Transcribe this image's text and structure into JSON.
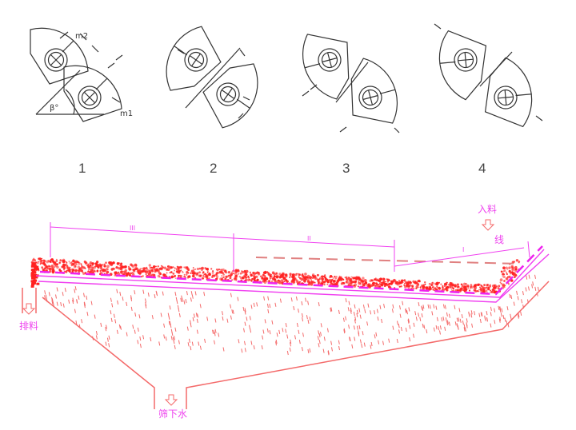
{
  "figure_top": {
    "configurations": [
      {
        "number": "1",
        "labels": {
          "m2": "m2",
          "m1": "m1",
          "angle": "β°"
        }
      },
      {
        "number": "2"
      },
      {
        "number": "3"
      },
      {
        "number": "4"
      }
    ]
  },
  "figure_bottom": {
    "zones": [
      "III",
      "II",
      "I"
    ],
    "labels": {
      "feed": "入料",
      "line": "线",
      "discharge": "排料",
      "underflow": "筛下水"
    },
    "colors": {
      "material": "#ff2020",
      "screen": "#f040f0",
      "housing": "#f46a6a"
    }
  }
}
